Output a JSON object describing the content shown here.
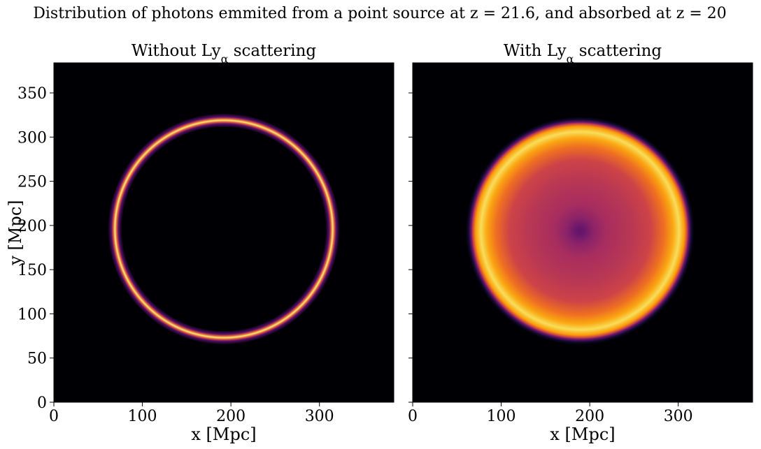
{
  "figure": {
    "suptitle": "Distribution of photons emmited from a point source at z = 21.6, and absorbed at z = 20"
  },
  "colormap": {
    "name": "inferno",
    "stops": [
      "#000004",
      "#1b0c41",
      "#4a0c6b",
      "#781c6d",
      "#a52c60",
      "#cf4446",
      "#ed6925",
      "#fb9b06",
      "#f7d13d",
      "#fcffa4"
    ]
  },
  "chart_data": [
    {
      "type": "heatmap",
      "title": "Without Ly",
      "title_subscript": "α",
      "title_suffix": " scattering",
      "xlabel": "x [Mpc]",
      "ylabel": "y [Mpc]",
      "xlim": [
        0,
        384
      ],
      "ylim": [
        0,
        384
      ],
      "xticks": [
        0,
        100,
        200,
        300
      ],
      "yticks": [
        0,
        50,
        100,
        150,
        200,
        250,
        300,
        350
      ],
      "show_ytick_labels": true,
      "center": [
        192,
        196
      ],
      "profile": [
        {
          "r": 0,
          "v": 0
        },
        {
          "r": 115,
          "v": 0
        },
        {
          "r": 119,
          "v": 0.25
        },
        {
          "r": 121,
          "v": 0.6
        },
        {
          "r": 123,
          "v": 0.95
        },
        {
          "r": 125,
          "v": 0.6
        },
        {
          "r": 127,
          "v": 0.25
        },
        {
          "r": 131,
          "v": 0
        },
        {
          "r": 300,
          "v": 0
        }
      ]
    },
    {
      "type": "heatmap",
      "title": "With Ly",
      "title_subscript": "α",
      "title_suffix": " scattering",
      "xlabel": "x [Mpc]",
      "ylabel": "",
      "xlim": [
        0,
        384
      ],
      "ylim": [
        0,
        384
      ],
      "xticks": [
        0,
        100,
        200,
        300
      ],
      "yticks": [
        0,
        50,
        100,
        150,
        200,
        250,
        300,
        350
      ],
      "show_ytick_labels": false,
      "center": [
        189,
        194
      ],
      "profile": [
        {
          "r": 0,
          "v": 0.28
        },
        {
          "r": 5,
          "v": 0.3
        },
        {
          "r": 15,
          "v": 0.38
        },
        {
          "r": 30,
          "v": 0.45
        },
        {
          "r": 60,
          "v": 0.5
        },
        {
          "r": 80,
          "v": 0.55
        },
        {
          "r": 95,
          "v": 0.68
        },
        {
          "r": 105,
          "v": 0.8
        },
        {
          "r": 112,
          "v": 0.92
        },
        {
          "r": 118,
          "v": 0.78
        },
        {
          "r": 121,
          "v": 0.55
        },
        {
          "r": 123,
          "v": 0.3
        },
        {
          "r": 126,
          "v": 0.08
        },
        {
          "r": 129,
          "v": 0
        },
        {
          "r": 300,
          "v": 0
        }
      ]
    }
  ]
}
